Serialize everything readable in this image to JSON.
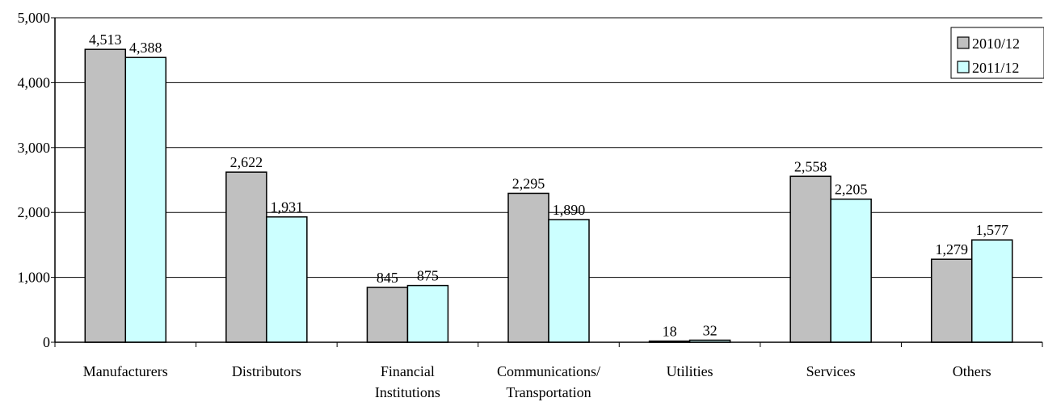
{
  "chart_data": {
    "type": "bar",
    "categories": [
      [
        "Manufacturers"
      ],
      [
        "Distributors"
      ],
      [
        "Financial",
        "Institutions"
      ],
      [
        "Communications/",
        "Transportation"
      ],
      [
        "Utilities"
      ],
      [
        "Services"
      ],
      [
        "Others"
      ]
    ],
    "series": [
      {
        "name": "2010/12",
        "values": [
          4513,
          2622,
          845,
          2295,
          18,
          2558,
          1279
        ],
        "color": "#c0c0c0"
      },
      {
        "name": "2011/12",
        "values": [
          4388,
          1931,
          875,
          1890,
          32,
          2205,
          1577
        ],
        "color": "#ccffff"
      }
    ],
    "value_labels": [
      [
        "4,513",
        "2,622",
        "845",
        "2,295",
        "18",
        "2,558",
        "1,279"
      ],
      [
        "4,388",
        "1,931",
        "875",
        "1,890",
        "32",
        "2,205",
        "1,577"
      ]
    ],
    "yticks": [
      0,
      1000,
      2000,
      3000,
      4000,
      5000
    ],
    "ytick_labels": [
      "0",
      "1,000",
      "2,000",
      "3,000",
      "4,000",
      "5,000"
    ],
    "ylim": [
      0,
      5000
    ],
    "title": "",
    "xlabel": "",
    "ylabel": "",
    "grid": true,
    "legend_position": "top-right"
  }
}
